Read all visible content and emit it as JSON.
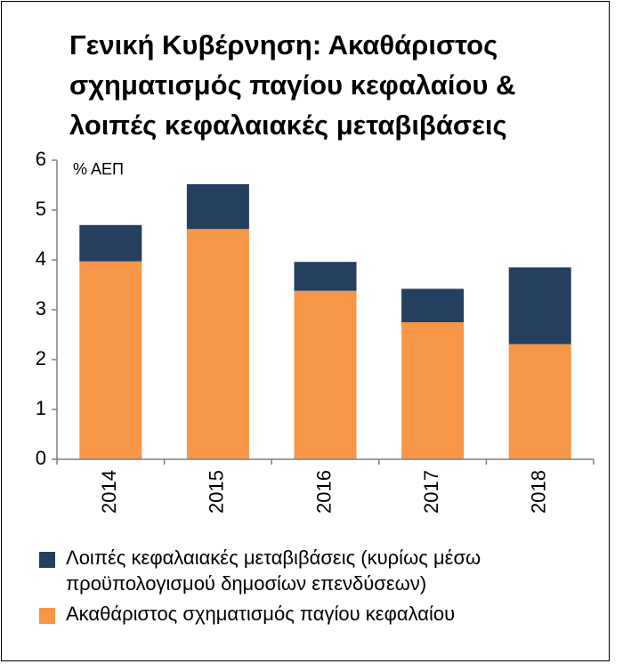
{
  "chart_data": {
    "type": "bar",
    "stacked": true,
    "title": "Γενική Κυβέρνηση: Ακαθάριστος σχηματισμός παγίου κεφαλαίου & λοιπές κεφαλαιακές μεταβιβάσεις",
    "unit_label": "% ΑΕΠ",
    "categories": [
      "2014",
      "2015",
      "2016",
      "2017",
      "2018"
    ],
    "series": [
      {
        "name": "Ακαθάριστος σχηματισμός παγίου κεφαλαίου",
        "color": "#F79646",
        "values": [
          3.97,
          4.62,
          3.38,
          2.75,
          2.31
        ]
      },
      {
        "name": "Λοιπές κεφαλαιακές μεταβιβάσεις (κυρίως μέσω προϋπολογισμού δημοσίων επενδύσεων)",
        "color": "#243F60",
        "values": [
          0.73,
          0.9,
          0.58,
          0.67,
          1.54
        ]
      }
    ],
    "ylim": [
      0,
      6
    ],
    "yticks": [
      "0",
      "1",
      "2",
      "3",
      "4",
      "5",
      "6"
    ],
    "grid": false,
    "legend_position": "bottom"
  }
}
